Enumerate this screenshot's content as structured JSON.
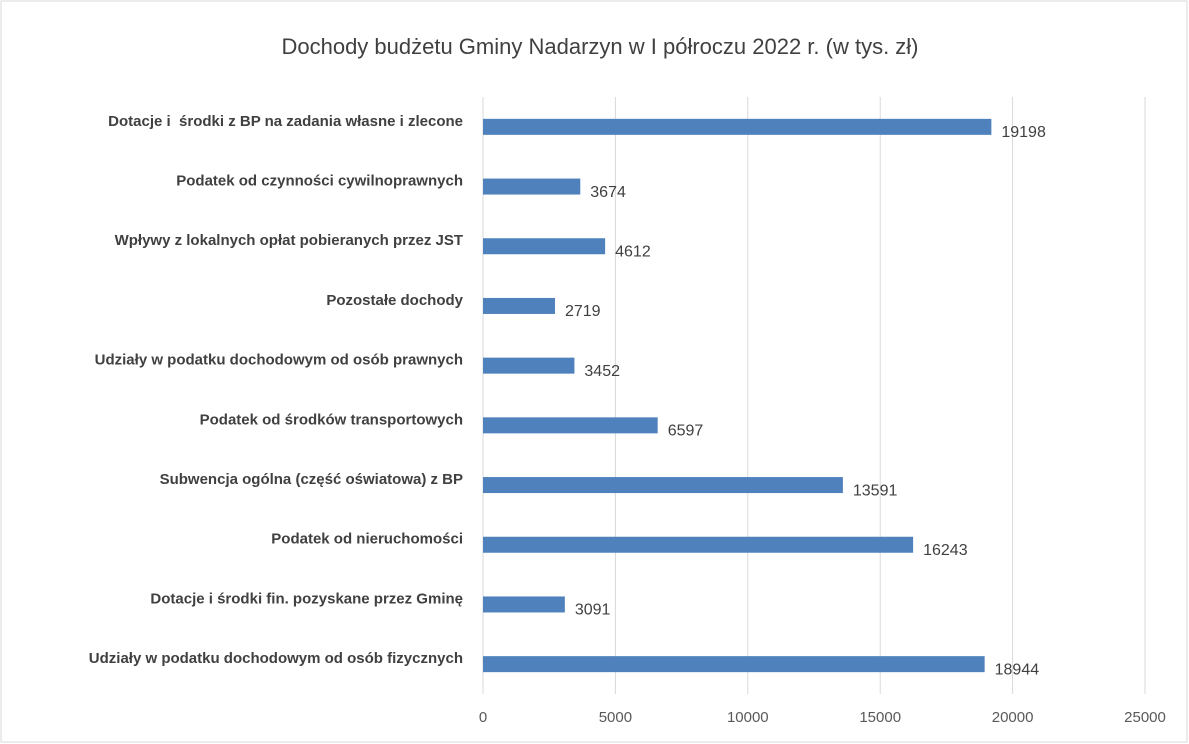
{
  "chart_data": {
    "type": "bar",
    "orientation": "horizontal",
    "title": "Dochody budżetu Gminy Nadarzyn w I półroczu 2022 r. (w tys. zł)",
    "categories": [
      "Dotacje i  środki z BP na zadania własne i zlecone",
      "Podatek od czynności cywilnoprawnych",
      "Wpływy z lokalnych opłat pobieranych przez JST",
      "Pozostałe dochody",
      "Udziały w podatku dochodowym od osób prawnych",
      "Podatek od środków transportowych",
      "Subwencja ogólna (część oświatowa) z BP",
      "Podatek od nieruchomości",
      "Dotacje i środki fin. pozyskane przez Gminę",
      "Udziały w podatku dochodowym od osób fizycznych"
    ],
    "values": [
      19198,
      3674,
      4612,
      2719,
      3452,
      6597,
      13591,
      16243,
      3091,
      18944
    ],
    "color": "#4f81bd",
    "xlim": [
      0,
      25000
    ],
    "xticks": [
      0,
      5000,
      10000,
      15000,
      20000,
      25000
    ],
    "grid": true
  }
}
